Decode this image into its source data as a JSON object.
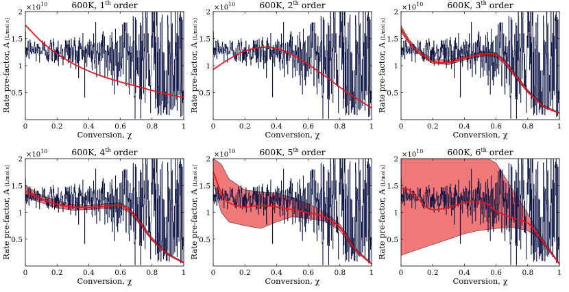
{
  "chart_data": [
    {
      "type": "line",
      "title_main": "600K, 1",
      "title_sup": "th",
      "title_tail": " order",
      "xlabel": "Conversion, χ",
      "ylabel": "Rate pre-factor, A",
      "ylabel_unit": "[L/mol s]",
      "y_multiplier_base": "×10",
      "y_multiplier_exp": "10",
      "xlim": [
        0,
        1
      ],
      "ylim": [
        0,
        2
      ],
      "xticks": [
        "0",
        "0.2",
        "0.4",
        "0.6",
        "0.8",
        "1"
      ],
      "yticks": [
        "0.5",
        "1",
        "1.5",
        "2"
      ],
      "noise_color": "#0f1545",
      "fit_color": "#e8141a",
      "band_color": "#f07878",
      "series": [
        {
          "name": "fit",
          "x": [
            0,
            0.1,
            0.2,
            0.3,
            0.4,
            0.5,
            0.6,
            0.7,
            0.8,
            0.9,
            1
          ],
          "y": [
            1.75,
            1.45,
            1.22,
            1.04,
            0.9,
            0.79,
            0.7,
            0.62,
            0.54,
            0.47,
            0.41
          ]
        }
      ],
      "band": null
    },
    {
      "type": "line",
      "title_main": "600K, 2",
      "title_sup": "th",
      "title_tail": " order",
      "xlabel": "Conversion, χ",
      "ylabel": "Rate pre-factor, A",
      "ylabel_unit": "[L/mol s]",
      "y_multiplier_base": "×10",
      "y_multiplier_exp": "10",
      "xlim": [
        0,
        1
      ],
      "ylim": [
        0,
        2
      ],
      "xticks": [
        "0",
        "0.2",
        "0.4",
        "0.6",
        "0.8",
        "1"
      ],
      "yticks": [
        "0.5",
        "1",
        "1.5",
        "2"
      ],
      "noise_color": "#0f1545",
      "fit_color": "#e8141a",
      "band_color": "#f07878",
      "series": [
        {
          "name": "fit",
          "x": [
            0,
            0.1,
            0.2,
            0.3,
            0.4,
            0.5,
            0.6,
            0.7,
            0.8,
            0.9,
            1
          ],
          "y": [
            0.93,
            1.12,
            1.27,
            1.34,
            1.32,
            1.2,
            1.02,
            0.82,
            0.6,
            0.4,
            0.22
          ]
        }
      ],
      "band": null
    },
    {
      "type": "line",
      "title_main": "600K, 3",
      "title_sup": "th",
      "title_tail": " order",
      "xlabel": "Conversion, χ",
      "ylabel": "Rate pre-factor, A",
      "ylabel_unit": "[L/mol s]",
      "y_multiplier_base": "×10",
      "y_multiplier_exp": "10",
      "xlim": [
        0,
        1
      ],
      "ylim": [
        0,
        2
      ],
      "xticks": [
        "0",
        "0.2",
        "0.4",
        "0.6",
        "0.8",
        "1"
      ],
      "yticks": [
        "0.5",
        "1",
        "1.5",
        "2"
      ],
      "noise_color": "#0f1545",
      "fit_color": "#e8141a",
      "band_color": "#f07878",
      "series": [
        {
          "name": "fit",
          "x": [
            0,
            0.05,
            0.1,
            0.2,
            0.3,
            0.4,
            0.5,
            0.55,
            0.6,
            0.65,
            0.7,
            0.8,
            0.9,
            1
          ],
          "y": [
            1.68,
            1.45,
            1.28,
            1.08,
            1.06,
            1.14,
            1.21,
            1.22,
            1.2,
            1.08,
            0.9,
            0.53,
            0.25,
            0.12
          ]
        }
      ],
      "band": {
        "x": [
          0,
          0.05,
          0.1,
          0.2,
          0.3,
          0.4,
          0.5,
          0.55,
          0.6,
          0.65,
          0.7,
          0.8,
          0.9,
          1
        ],
        "upper": [
          1.74,
          1.49,
          1.32,
          1.12,
          1.1,
          1.18,
          1.25,
          1.26,
          1.24,
          1.12,
          0.94,
          0.56,
          0.27,
          0.13
        ],
        "lower": [
          1.62,
          1.41,
          1.24,
          1.04,
          1.02,
          1.1,
          1.17,
          1.18,
          1.16,
          1.04,
          0.86,
          0.5,
          0.23,
          0.11
        ]
      }
    },
    {
      "type": "line",
      "title_main": "600K, 4",
      "title_sup": "th",
      "title_tail": " order",
      "xlabel": "Conversion, χ",
      "ylabel": "Rate pre-factor, A",
      "ylabel_unit": "[L/mol s]",
      "y_multiplier_base": "×10",
      "y_multiplier_exp": "10",
      "xlim": [
        0,
        1
      ],
      "ylim": [
        0,
        2
      ],
      "xticks": [
        "0",
        "0.2",
        "0.4",
        "0.6",
        "0.8",
        "1"
      ],
      "yticks": [
        "0.5",
        "1",
        "1.5",
        "2"
      ],
      "noise_color": "#0f1545",
      "fit_color": "#e8141a",
      "band_color": "#f07878",
      "series": [
        {
          "name": "fit",
          "x": [
            0,
            0.1,
            0.2,
            0.3,
            0.4,
            0.5,
            0.6,
            0.65,
            0.7,
            0.8,
            0.9,
            1
          ],
          "y": [
            1.39,
            1.25,
            1.15,
            1.1,
            1.09,
            1.11,
            1.13,
            1.05,
            0.9,
            0.5,
            0.22,
            0.06
          ]
        }
      ],
      "band": {
        "x": [
          0,
          0.1,
          0.2,
          0.3,
          0.4,
          0.5,
          0.6,
          0.65,
          0.7,
          0.8,
          0.9,
          1
        ],
        "upper": [
          1.5,
          1.32,
          1.22,
          1.15,
          1.13,
          1.16,
          1.18,
          1.09,
          0.94,
          0.53,
          0.24,
          0.07
        ],
        "lower": [
          1.28,
          1.18,
          1.08,
          1.04,
          1.05,
          1.07,
          1.08,
          1.01,
          0.86,
          0.47,
          0.2,
          0.05
        ]
      }
    },
    {
      "type": "line",
      "title_main": "600K, 5",
      "title_sup": "th",
      "title_tail": " order",
      "xlabel": "Conversion, χ",
      "ylabel": "Rate pre-factor, A",
      "ylabel_unit": "[L/mol s]",
      "y_multiplier_base": "×10",
      "y_multiplier_exp": "10",
      "xlim": [
        0,
        1
      ],
      "ylim": [
        0,
        2
      ],
      "xticks": [
        "0",
        "0.2",
        "0.4",
        "0.6",
        "0.8",
        "1"
      ],
      "yticks": [
        "0.5",
        "1",
        "1.5",
        "2"
      ],
      "noise_color": "#0f1545",
      "fit_color": "#e8141a",
      "band_color": "#f07878",
      "series": [
        {
          "name": "fit",
          "x": [
            0,
            0.05,
            0.1,
            0.2,
            0.3,
            0.4,
            0.5,
            0.6,
            0.7,
            0.8,
            0.9,
            1
          ],
          "y": [
            1.76,
            1.37,
            1.18,
            1.1,
            1.13,
            1.1,
            1.05,
            0.99,
            0.92,
            0.72,
            0.3,
            0.04
          ]
        }
      ],
      "band": {
        "x": [
          0,
          0.05,
          0.1,
          0.2,
          0.3,
          0.4,
          0.5,
          0.6,
          0.7,
          0.8,
          0.9,
          1
        ],
        "upper": [
          2.0,
          1.9,
          1.62,
          1.42,
          1.38,
          1.36,
          1.27,
          1.16,
          1.02,
          0.78,
          0.33,
          0.05
        ],
        "lower": [
          1.55,
          1.0,
          0.82,
          0.75,
          0.7,
          0.82,
          0.92,
          0.88,
          0.84,
          0.66,
          0.27,
          0.03
        ]
      }
    },
    {
      "type": "line",
      "title_main": "600K, 6",
      "title_sup": "th",
      "title_tail": " order",
      "xlabel": "Conversion, χ",
      "ylabel": "Rate pre-factor, A",
      "ylabel_unit": "[L/mol s]",
      "y_multiplier_base": "×10",
      "y_multiplier_exp": "10",
      "xlim": [
        0,
        1
      ],
      "ylim": [
        0,
        2
      ],
      "xticks": [
        "0",
        "0.2",
        "0.4",
        "0.6",
        "0.8",
        "1"
      ],
      "yticks": [
        "0.5",
        "1",
        "1.5",
        "2"
      ],
      "noise_color": "#0f1545",
      "fit_color": "#e8141a",
      "band_color": "#f07878",
      "series": [
        {
          "name": "fit",
          "x": [
            0,
            0.05,
            0.1,
            0.15,
            0.2,
            0.3,
            0.4,
            0.47,
            0.55,
            0.6,
            0.7,
            0.8,
            0.85,
            0.9,
            1
          ],
          "y": [
            1.45,
            1.42,
            1.28,
            1.12,
            1.05,
            1.09,
            1.18,
            1.2,
            1.15,
            1.02,
            0.9,
            0.8,
            0.64,
            0.44,
            0.04
          ]
        }
      ],
      "band": {
        "x": [
          0,
          0.05,
          0.1,
          0.2,
          0.3,
          0.4,
          0.47,
          0.55,
          0.6,
          0.7,
          0.8,
          0.85,
          0.9,
          1
        ],
        "upper": [
          2.0,
          2.0,
          2.0,
          2.0,
          2.0,
          2.0,
          2.0,
          2.0,
          1.92,
          1.45,
          0.98,
          0.72,
          0.48,
          0.05
        ],
        "lower": [
          0.2,
          0.25,
          0.3,
          0.4,
          0.5,
          0.6,
          0.65,
          0.68,
          0.7,
          0.72,
          0.66,
          0.56,
          0.4,
          0.03
        ]
      }
    }
  ]
}
